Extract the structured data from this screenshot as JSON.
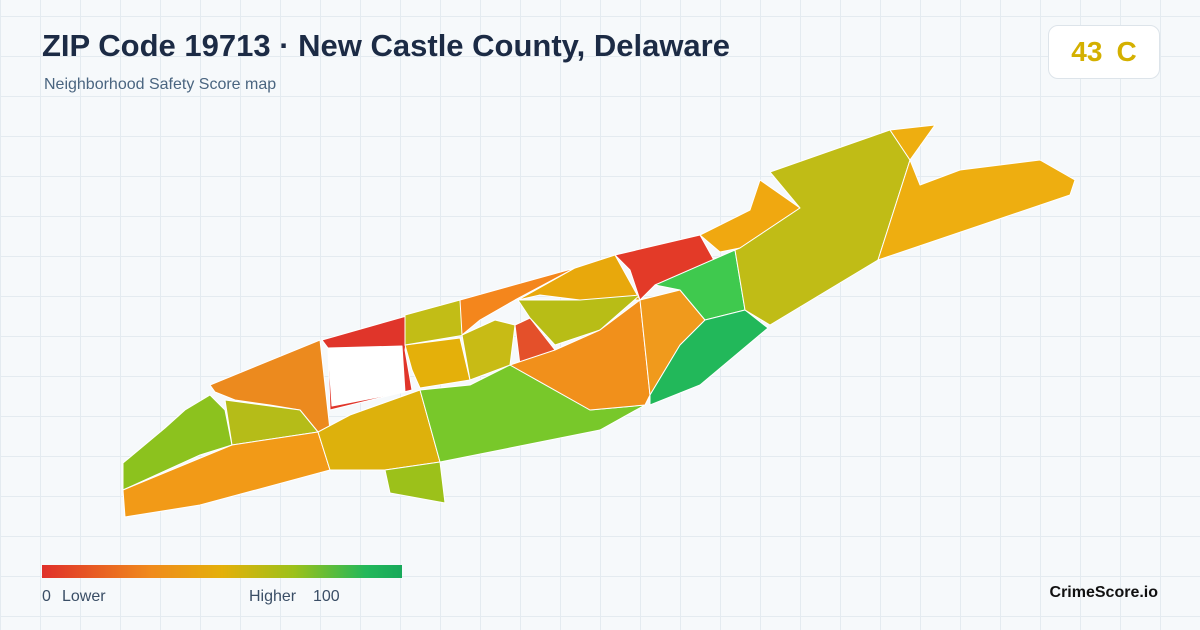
{
  "header": {
    "title": "ZIP Code 19713 · New Castle County, Delaware",
    "subtitle": "Neighborhood Safety Score map"
  },
  "score": {
    "value": 43,
    "grade": "C"
  },
  "legend": {
    "min": 0,
    "min_label": "Lower",
    "max_label": "Higher",
    "max": 100
  },
  "brand": "CrimeScore.io"
}
